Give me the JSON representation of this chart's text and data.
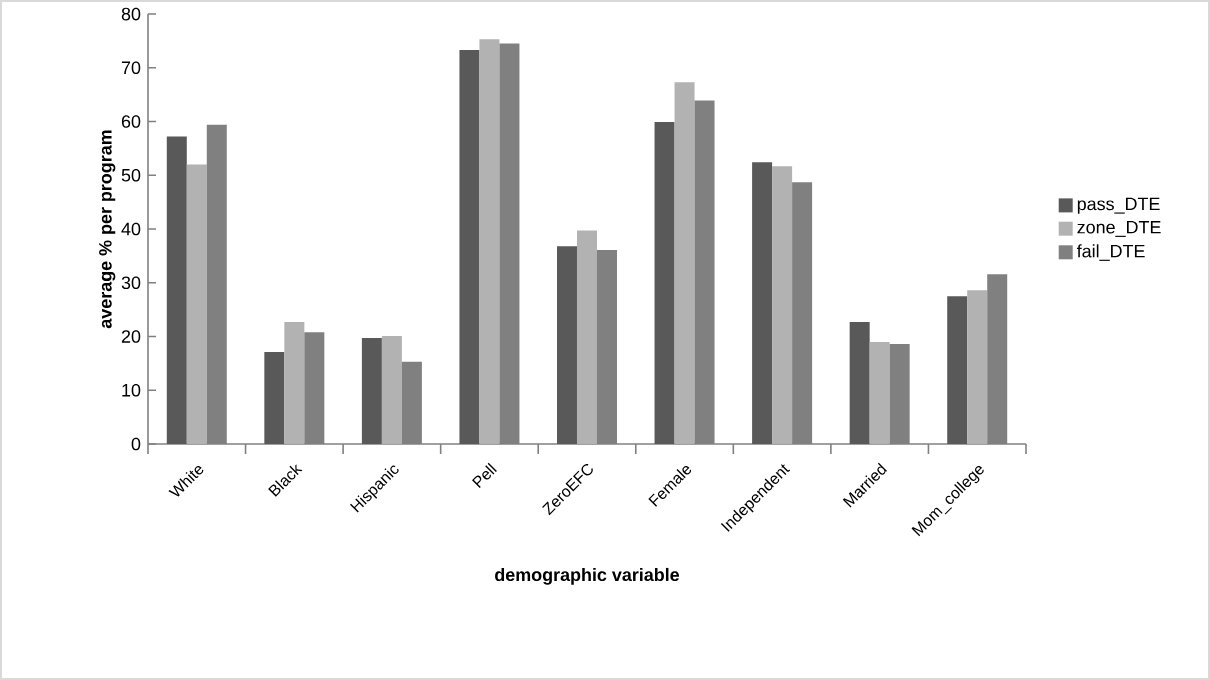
{
  "chart_data": {
    "type": "bar",
    "xlabel": "demographic variable",
    "ylabel": "average % per program",
    "categories": [
      "White",
      "Black",
      "Hispanic",
      "Pell",
      "ZeroEFC",
      "Female",
      "Independent",
      "Married",
      "Mom_college"
    ],
    "series": [
      {
        "name": "pass_DTE",
        "color": "#595959",
        "values": [
          57.2,
          17.1,
          19.7,
          73.3,
          36.8,
          59.9,
          52.4,
          22.7,
          27.5
        ]
      },
      {
        "name": "zone_DTE",
        "color": "#b2b2b2",
        "values": [
          52.0,
          22.7,
          20.1,
          75.3,
          39.7,
          67.3,
          51.7,
          19.0,
          28.6
        ]
      },
      {
        "name": "fail_DTE",
        "color": "#808080",
        "values": [
          59.4,
          20.8,
          15.3,
          74.5,
          36.1,
          63.9,
          48.7,
          18.6,
          31.6
        ]
      }
    ],
    "ylim": [
      0,
      80
    ],
    "yticks": [
      0,
      10,
      20,
      30,
      40,
      50,
      60,
      70,
      80
    ],
    "grid": false,
    "legend": "right"
  }
}
